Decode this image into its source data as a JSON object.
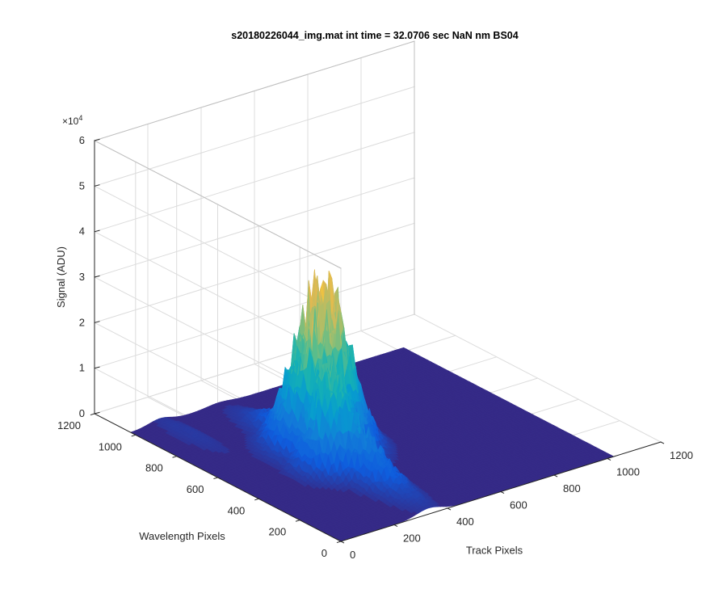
{
  "chart_data": {
    "type": "surface3d",
    "title": "s20180226044_img.mat int time = 32.0706 sec  NaN nm BS04",
    "xlabel": "Track Pixels",
    "ylabel": "Wavelength Pixels",
    "zlabel": "Signal (ADU)",
    "z_exponent_label": "×10",
    "z_exponent": "4",
    "x_ticks": [
      "0",
      "200",
      "400",
      "600",
      "800",
      "1000",
      "1200"
    ],
    "y_ticks": [
      "0",
      "200",
      "400",
      "600",
      "800",
      "1000",
      "1200"
    ],
    "z_ticks": [
      "0",
      "1",
      "2",
      "3",
      "4",
      "5",
      "6"
    ],
    "xlim": [
      0,
      1200
    ],
    "ylim": [
      0,
      1200
    ],
    "zlim": [
      0,
      60000
    ],
    "grid": true,
    "colormap": "parula",
    "surface_extent": {
      "x": [
        0,
        1024
      ],
      "y": [
        0,
        1024
      ]
    },
    "baseline_signal": 0,
    "peak": {
      "track_pixel": 370,
      "wavelength_pixel": 570,
      "signal": 37000
    },
    "secondary_peak": {
      "track_pixel": 300,
      "wavelength_pixel": 430,
      "signal": 20000
    },
    "colors": {
      "floor": "#352a87",
      "low": "#0f5cdd",
      "mid": "#1aa2c5",
      "high": "#a5be5b",
      "top": "#f8ba3d"
    }
  }
}
